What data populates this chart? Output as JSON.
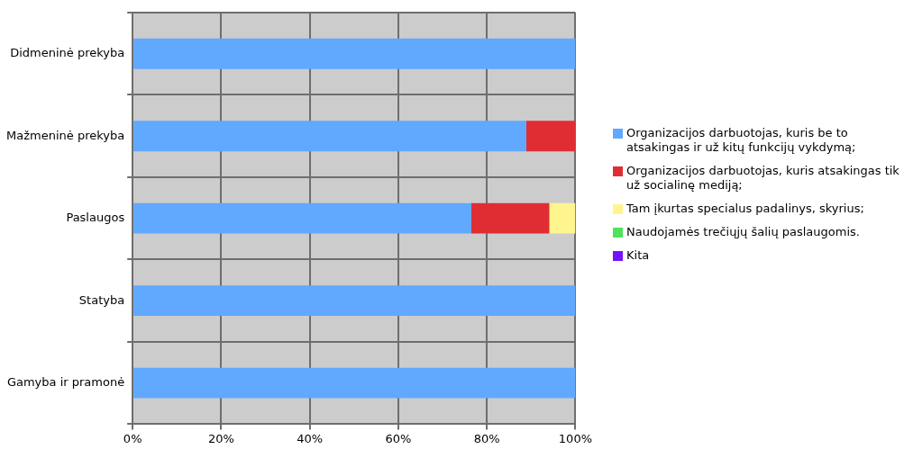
{
  "chart_data": {
    "type": "bar",
    "orientation": "horizontal",
    "stacked": true,
    "categories": [
      "Didmeninė prekyba",
      "Mažmeninė prekyba",
      "Paslaugos",
      "Statyba",
      "Gamyba ir pramonė"
    ],
    "series": [
      {
        "name": "Organizacijos darbuotojas, kuris be to atsakingas ir už kitų funkcijų vykdymą;",
        "color": "#61a8ff",
        "values": [
          100,
          88.9,
          76.5,
          100,
          100
        ]
      },
      {
        "name": "Organizacijos darbuotojas, kuris atsakingas tik už socialinę mediją;",
        "color": "#e02d33",
        "values": [
          0,
          11.1,
          17.6,
          0,
          0
        ]
      },
      {
        "name": "Tam įkurtas specialus padalinys, skyrius;",
        "color": "#fff58f",
        "values": [
          0,
          0,
          5.9,
          0,
          0
        ]
      },
      {
        "name": "Naudojamės trečiųjų šalių paslaugomis.",
        "color": "#4de35a",
        "values": [
          0,
          0,
          0,
          0,
          0
        ]
      },
      {
        "name": "Kita",
        "color": "#7312ff",
        "values": [
          0,
          0,
          0,
          0,
          0
        ]
      }
    ],
    "xlim": [
      0,
      100
    ],
    "xticks": [
      {
        "value": 0,
        "label": "0%"
      },
      {
        "value": 20,
        "label": "20%"
      },
      {
        "value": 40,
        "label": "40%"
      },
      {
        "value": 60,
        "label": "60%"
      },
      {
        "value": 80,
        "label": "80%"
      },
      {
        "value": 100,
        "label": "100%"
      }
    ],
    "grid": true,
    "legend": "right"
  }
}
